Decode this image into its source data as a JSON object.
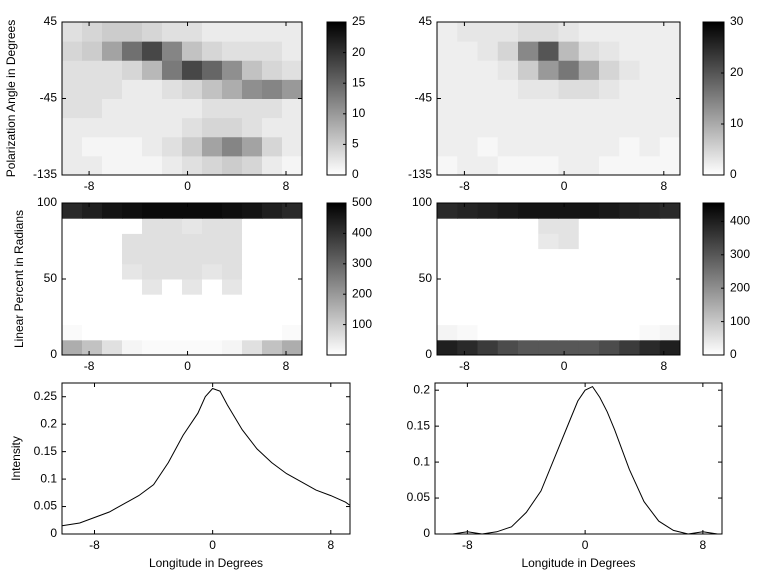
{
  "chart_data": [
    {
      "type": "heatmap",
      "ylabel": "Polarization Angle in Degrees",
      "xlim": [
        -10.2,
        9.3
      ],
      "xticks": [
        -8,
        0,
        8
      ],
      "ylim": [
        -135,
        45
      ],
      "yticks": [
        -135,
        -45,
        45
      ],
      "z": [
        [
          2,
          2,
          1,
          1,
          1,
          2,
          3,
          4,
          5,
          4,
          2,
          1
        ],
        [
          2,
          1,
          1,
          1,
          2,
          3,
          5,
          9,
          12,
          9,
          4,
          2
        ],
        [
          2,
          2,
          2,
          2,
          2,
          2,
          3,
          4,
          4,
          3,
          2,
          2
        ],
        [
          3,
          3,
          2,
          2,
          2,
          2,
          2,
          3,
          3,
          3,
          3,
          2
        ],
        [
          3,
          3,
          3,
          2,
          2,
          3,
          4,
          6,
          8,
          11,
          12,
          10
        ],
        [
          3,
          3,
          3,
          4,
          7,
          13,
          18,
          15,
          11,
          6,
          4,
          3
        ],
        [
          4,
          5,
          9,
          14,
          18,
          12,
          6,
          4,
          3,
          3,
          3,
          2
        ],
        [
          3,
          4,
          5,
          5,
          4,
          3,
          3,
          2,
          2,
          2,
          2,
          2
        ]
      ],
      "colorbar": {
        "lim": [
          0,
          25
        ],
        "ticks": [
          0,
          5,
          10,
          15,
          20,
          25
        ]
      }
    },
    {
      "type": "heatmap",
      "xlim": [
        -10.2,
        9.3
      ],
      "xticks": [
        -8,
        0,
        8
      ],
      "ylim": [
        -135,
        45
      ],
      "yticks": [
        -135,
        -45,
        45
      ],
      "z": [
        [
          1,
          2,
          2,
          1,
          1,
          1,
          2,
          2,
          1,
          1,
          1,
          1
        ],
        [
          2,
          2,
          1,
          2,
          2,
          2,
          2,
          2,
          2,
          1,
          2,
          1
        ],
        [
          2,
          2,
          2,
          2,
          2,
          2,
          2,
          2,
          2,
          2,
          2,
          2
        ],
        [
          2,
          2,
          2,
          2,
          2,
          2,
          2,
          2,
          2,
          2,
          2,
          2
        ],
        [
          2,
          2,
          2,
          2,
          3,
          3,
          4,
          4,
          3,
          2,
          2,
          2
        ],
        [
          2,
          2,
          2,
          3,
          6,
          12,
          16,
          10,
          5,
          3,
          2,
          2
        ],
        [
          2,
          2,
          3,
          5,
          14,
          20,
          8,
          4,
          3,
          2,
          2,
          2
        ],
        [
          2,
          3,
          3,
          3,
          4,
          4,
          3,
          2,
          2,
          2,
          2,
          2
        ]
      ],
      "colorbar": {
        "lim": [
          0,
          30
        ],
        "ticks": [
          0,
          10,
          20,
          30
        ]
      }
    },
    {
      "type": "heatmap",
      "ylabel": "Linear Percent in Radians",
      "xlim": [
        -10.2,
        9.3
      ],
      "xticks": [
        -8,
        0,
        8
      ],
      "ylim": [
        0,
        100
      ],
      "yticks": [
        0,
        50,
        100
      ],
      "z": [
        [
          160,
          120,
          60,
          20,
          10,
          10,
          10,
          10,
          20,
          60,
          120,
          160
        ],
        [
          10,
          0,
          0,
          0,
          0,
          0,
          0,
          0,
          0,
          0,
          0,
          10
        ],
        [
          0,
          0,
          0,
          0,
          0,
          0,
          0,
          0,
          0,
          0,
          0,
          0
        ],
        [
          0,
          0,
          0,
          0,
          0,
          0,
          0,
          0,
          0,
          0,
          0,
          0
        ],
        [
          0,
          0,
          0,
          0,
          50,
          0,
          50,
          0,
          50,
          0,
          0,
          0
        ],
        [
          0,
          0,
          0,
          50,
          60,
          60,
          60,
          50,
          60,
          0,
          0,
          0
        ],
        [
          0,
          0,
          0,
          60,
          60,
          60,
          60,
          60,
          60,
          0,
          0,
          0
        ],
        [
          0,
          0,
          0,
          60,
          60,
          60,
          60,
          60,
          60,
          0,
          0,
          0
        ],
        [
          0,
          0,
          0,
          0,
          60,
          60,
          50,
          60,
          60,
          0,
          0,
          0
        ],
        [
          420,
          440,
          460,
          470,
          480,
          480,
          480,
          480,
          470,
          460,
          440,
          420
        ]
      ],
      "colorbar": {
        "lim": [
          0,
          500
        ],
        "ticks": [
          100,
          200,
          300,
          400,
          500
        ]
      }
    },
    {
      "type": "heatmap",
      "xlim": [
        -10.2,
        9.3
      ],
      "xticks": [
        -8,
        0,
        8
      ],
      "ylim": [
        0,
        100
      ],
      "yticks": [
        0,
        50,
        100
      ],
      "z": [
        [
          400,
          380,
          350,
          320,
          300,
          300,
          300,
          300,
          320,
          350,
          380,
          400
        ],
        [
          20,
          10,
          0,
          0,
          0,
          0,
          0,
          0,
          0,
          0,
          10,
          20
        ],
        [
          0,
          0,
          0,
          0,
          0,
          0,
          0,
          0,
          0,
          0,
          0,
          0
        ],
        [
          0,
          0,
          0,
          0,
          0,
          0,
          0,
          0,
          0,
          0,
          0,
          0
        ],
        [
          0,
          0,
          0,
          0,
          0,
          0,
          0,
          0,
          0,
          0,
          0,
          0
        ],
        [
          0,
          0,
          0,
          0,
          0,
          0,
          0,
          0,
          0,
          0,
          0,
          0
        ],
        [
          0,
          0,
          0,
          0,
          0,
          0,
          0,
          0,
          0,
          0,
          0,
          0
        ],
        [
          0,
          0,
          0,
          0,
          0,
          40,
          50,
          0,
          0,
          0,
          0,
          0
        ],
        [
          0,
          0,
          0,
          0,
          0,
          50,
          50,
          0,
          0,
          0,
          0,
          0
        ],
        [
          380,
          390,
          400,
          410,
          420,
          420,
          420,
          420,
          410,
          400,
          390,
          380
        ]
      ],
      "colorbar": {
        "lim": [
          0,
          455
        ],
        "ticks": [
          0,
          100,
          200,
          300,
          400
        ]
      }
    },
    {
      "type": "line",
      "ylabel": "Intensity",
      "xlabel": "Longitude in Degrees",
      "color": "#000000",
      "xlim": [
        -10.2,
        9.3
      ],
      "xticks": [
        -8,
        0,
        8
      ],
      "ylim": [
        0,
        0.275
      ],
      "yticks": [
        0,
        0.05,
        0.1,
        0.15,
        0.2,
        0.25
      ],
      "x": [
        -10.2,
        -9,
        -8,
        -7,
        -6,
        -5,
        -4,
        -3,
        -2,
        -1,
        -0.5,
        0,
        0.5,
        1,
        2,
        3,
        4,
        5,
        6,
        7,
        8,
        9,
        9.3
      ],
      "values": [
        0.015,
        0.02,
        0.03,
        0.04,
        0.055,
        0.07,
        0.09,
        0.13,
        0.18,
        0.22,
        0.25,
        0.265,
        0.26,
        0.235,
        0.19,
        0.155,
        0.13,
        0.11,
        0.095,
        0.08,
        0.07,
        0.058,
        0.052
      ]
    },
    {
      "type": "line",
      "xlabel": "Longitude in Degrees",
      "color": "#000000",
      "xlim": [
        -10.2,
        9.3
      ],
      "xticks": [
        -8,
        0,
        8
      ],
      "ylim": [
        0,
        0.21
      ],
      "yticks": [
        0,
        0.05,
        0.1,
        0.15,
        0.2
      ],
      "x": [
        -10.2,
        -9,
        -8,
        -7,
        -6,
        -5,
        -4,
        -3,
        -2,
        -1,
        -0.5,
        0,
        0.5,
        1,
        1.5,
        2,
        3,
        4,
        5,
        6,
        7,
        8,
        9,
        9.3
      ],
      "values": [
        0,
        0,
        0.003,
        0,
        0.003,
        0.01,
        0.03,
        0.06,
        0.11,
        0.16,
        0.185,
        0.2,
        0.205,
        0.19,
        0.17,
        0.145,
        0.09,
        0.045,
        0.018,
        0.005,
        0,
        0.003,
        0,
        0
      ]
    }
  ]
}
